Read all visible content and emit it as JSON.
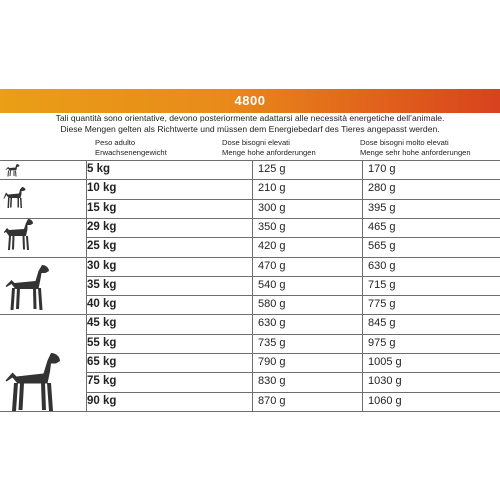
{
  "banner": {
    "code": "4800",
    "color_left": "#e99f16",
    "color_right": "#d8421e"
  },
  "notes": {
    "it": "Tali quantità sono orientative, devono posteriormente adattarsi alle necessità energetiche dell’animale.",
    "de": "Diese Mengen gelten als Richtwerte und müssen dem Energiebedarf des Tieres angepasst werden."
  },
  "headers": {
    "weight_it": "Peso adulto",
    "weight_de": "Erwachsenengewicht",
    "high_it": "Dose bisogni elevati",
    "high_de": "Menge hohe anforderungen",
    "very_high_it": "Dose bisogni molto elevati",
    "very_high_de": "Menge sehr hohe anforderungen"
  },
  "rows": [
    {
      "weight": "5 kg",
      "high": "125 g",
      "very_high": "170 g"
    },
    {
      "weight": "10 kg",
      "high": "210 g",
      "very_high": "280 g"
    },
    {
      "weight": "15 kg",
      "high": "300 g",
      "very_high": "395 g"
    },
    {
      "weight": "29 kg",
      "high": "350 g",
      "very_high": "465 g"
    },
    {
      "weight": "25 kg",
      "high": "420 g",
      "very_high": "565 g"
    },
    {
      "weight": "30 kg",
      "high": "470 g",
      "very_high": "630 g"
    },
    {
      "weight": "35 kg",
      "high": "540 g",
      "very_high": "715 g"
    },
    {
      "weight": "40 kg",
      "high": "580 g",
      "very_high": "775 g"
    },
    {
      "weight": "45 kg",
      "high": "630 g",
      "very_high": "845 g"
    },
    {
      "weight": "55 kg",
      "high": "735 g",
      "very_high": "975 g"
    },
    {
      "weight": "65 kg",
      "high": "790 g",
      "very_high": "1005 g"
    },
    {
      "weight": "75 kg",
      "high": "830 g",
      "very_high": "1030 g"
    },
    {
      "weight": "90 kg",
      "high": "870 g",
      "very_high": "1060 g"
    }
  ],
  "dog_icons": [
    "small-dog-icon",
    "beagle-dog-icon",
    "medium-dog-icon",
    "large-dog-icon",
    "giant-dog-icon"
  ]
}
